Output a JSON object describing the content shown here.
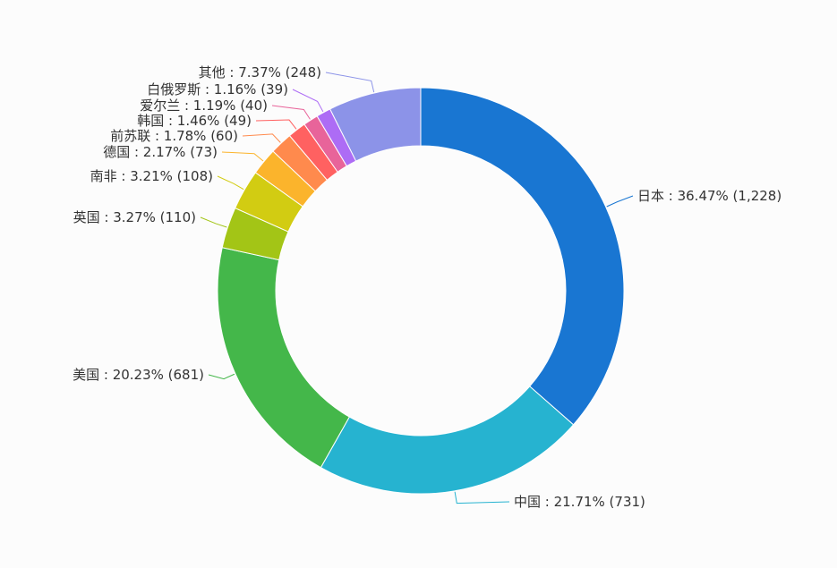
{
  "chart_data": {
    "type": "pie",
    "donut": true,
    "title": "",
    "legend": "none",
    "slices": [
      {
        "name": "日本",
        "percent": "36.47%",
        "value": 1228,
        "value_label": "1,228",
        "color": "#1976d2"
      },
      {
        "name": "中国",
        "percent": "21.71%",
        "value": 731,
        "value_label": "731",
        "color": "#26b3d0"
      },
      {
        "name": "美国",
        "percent": "20.23%",
        "value": 681,
        "value_label": "681",
        "color": "#44b74a"
      },
      {
        "name": "英国",
        "percent": "3.27%",
        "value": 110,
        "value_label": "110",
        "color": "#a3c516"
      },
      {
        "name": "南非",
        "percent": "3.21%",
        "value": 108,
        "value_label": "108",
        "color": "#d2cc12"
      },
      {
        "name": "德国",
        "percent": "2.17%",
        "value": 73,
        "value_label": "73",
        "color": "#fbb42c"
      },
      {
        "name": "前苏联",
        "percent": "1.78%",
        "value": 60,
        "value_label": "60",
        "color": "#ff8a4d"
      },
      {
        "name": "韩国",
        "percent": "1.46%",
        "value": 49,
        "value_label": "49",
        "color": "#ff6161"
      },
      {
        "name": "爱尔兰",
        "percent": "1.19%",
        "value": 40,
        "value_label": "40",
        "color": "#e8649a"
      },
      {
        "name": "白俄罗斯",
        "percent": "1.16%",
        "value": 39,
        "value_label": "39",
        "color": "#ad6cf5"
      },
      {
        "name": "其他",
        "percent": "7.37%",
        "value": 248,
        "value_label": "248",
        "color": "#8c93e8"
      }
    ]
  }
}
